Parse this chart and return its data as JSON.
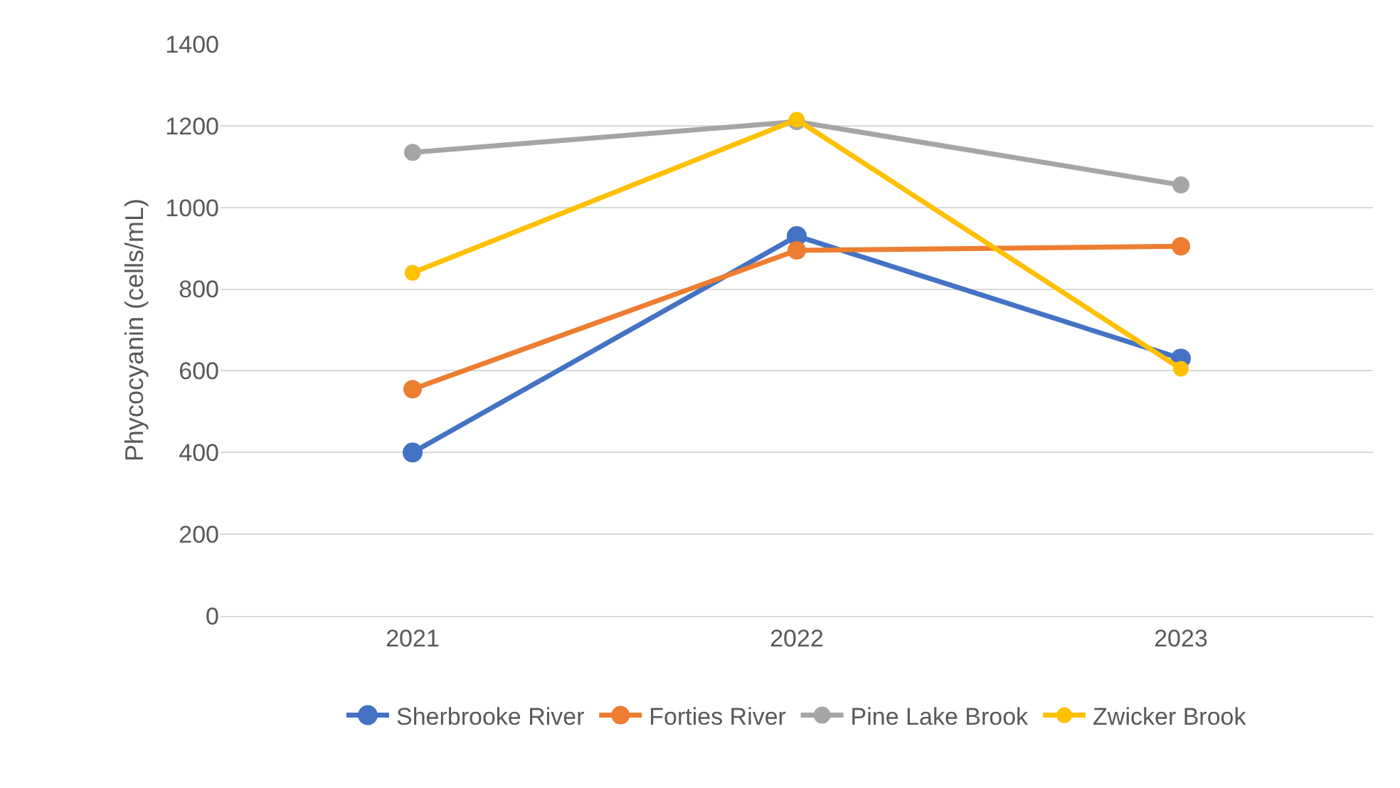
{
  "chart_data": {
    "type": "line",
    "ylabel": "Phycocyanin (cells/mL)",
    "categories": [
      "2021",
      "2022",
      "2023"
    ],
    "series": [
      {
        "name": "Sherbrooke River",
        "color": "#4472c4",
        "values": [
          400,
          930,
          630
        ]
      },
      {
        "name": "Forties River",
        "color": "#ed7d31",
        "values": [
          555,
          895,
          905
        ]
      },
      {
        "name": "Pine Lake Brook",
        "color": "#a5a5a5",
        "values": [
          1135,
          1210,
          1055
        ]
      },
      {
        "name": "Zwicker Brook",
        "color": "#ffc000",
        "values": [
          840,
          1215,
          605
        ]
      }
    ],
    "ylim": [
      0,
      1400
    ],
    "yticks": [
      0,
      200,
      400,
      600,
      800,
      1000,
      1200,
      1400
    ],
    "grid": "y",
    "legend": "bottom",
    "marker": "circle",
    "line_style": "solid"
  }
}
